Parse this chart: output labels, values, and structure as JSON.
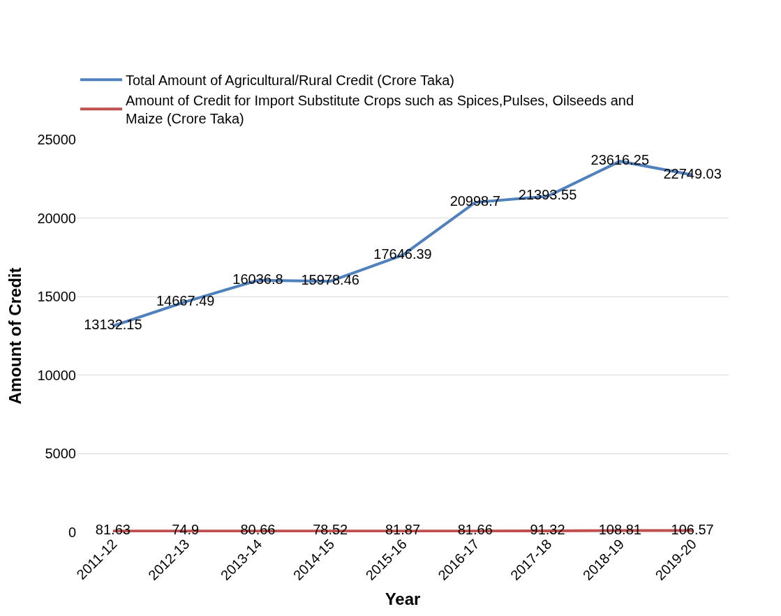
{
  "chart_data": {
    "type": "line",
    "xlabel": "Year",
    "ylabel": "Amount of Credit",
    "categories": [
      "2011-12",
      "2012-13",
      "2013-14",
      "2014-15",
      "2015-16",
      "2016-17",
      "2017-18",
      "2018-19",
      "2019-20"
    ],
    "series": [
      {
        "name": "Total Amount of Agricultural/Rural Credit (Crore Taka)",
        "color": "#4f81bd",
        "values": [
          13132.15,
          14667.49,
          16036.8,
          15978.46,
          17646.39,
          20998.7,
          21393.55,
          23616.25,
          22749.03
        ]
      },
      {
        "name": "Amount of Credit for Import Substitute Crops such as Spices,Pulses, Oilseeds and Maize (Crore Taka)",
        "color": "#c0504d",
        "values": [
          81.63,
          74.9,
          80.66,
          78.52,
          81.87,
          81.66,
          91.32,
          108.81,
          106.57
        ]
      }
    ],
    "ylim": [
      0,
      25000
    ],
    "yticks": [
      0,
      5000,
      10000,
      15000,
      20000,
      25000
    ],
    "grid": "y",
    "legend": "top",
    "data_labels": true,
    "marker": "none",
    "line_style": "solid"
  }
}
